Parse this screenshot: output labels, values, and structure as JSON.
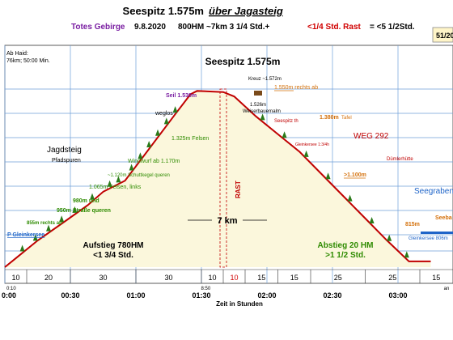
{
  "chart_data": {
    "type": "area",
    "title": "Seespitz 1.575m",
    "title_suffix": "über Jagasteig",
    "subtitle": {
      "region": "Totes Gebirge",
      "date": "9.8.2020",
      "stats": "800HM ~7km 3 1/4 Std.+",
      "rest": "<1/4 Std. Rast",
      "total": "= <5 1/2Std."
    },
    "page_badge": "51/20",
    "peak_label": "Seespitz 1.575m",
    "xlabel": "Zeit in Stunden",
    "x_ticks": [
      "0:00",
      "00:30",
      "01:00",
      "01:30",
      "02:00",
      "02:30",
      "03:00"
    ],
    "x_extra_labels": [
      "0:10",
      "8:50",
      "an"
    ],
    "x_range_minutes": [
      0,
      195
    ],
    "y_range_m": [
      780,
      1620
    ],
    "grid": true,
    "legend": "none",
    "profile_x_minutes": [
      0,
      5,
      15,
      28,
      38,
      45,
      55,
      65,
      78,
      85,
      88,
      100,
      105,
      115,
      125,
      135,
      145,
      155,
      165,
      175,
      185,
      195
    ],
    "profile_y_m": [
      780,
      820,
      900,
      990,
      1060,
      1120,
      1170,
      1300,
      1470,
      1560,
      1575,
      1570,
      1550,
      1460,
      1380,
      1300,
      1200,
      1100,
      1000,
      900,
      806,
      806
    ],
    "info_box": [
      "Ab Haid:",
      "76km; 50:00 Min."
    ],
    "annotations": {
      "jagdsteig": "Jagdsteig",
      "pfadspuren": "Pfadspuren",
      "seil": "Seil 1.530m",
      "weglos": "weglos",
      "felsen_1325": "1.325m Felsen",
      "windwurf": "Windwurf ab 1.170m",
      "schuttkegel": "~1.120m Schuttkegel queren",
      "felsen_1065": "1.065m Felsen, links",
      "wp_980": "980m und",
      "wp_950": "950m Straße queren",
      "wp_855": "855m rechts ab",
      "start": "P Gleinkersee",
      "kreuz": "Kreuz ~1.572m",
      "abzweig": "1.550m rechts ab",
      "weiser_alt": "1.526m",
      "weiser": "Weiserbauernalm",
      "seespitz_th": "Seespitz th",
      "tafel_alt": "1.380m",
      "tafel": "Tafel",
      "weg": "WEG 292",
      "gleinkersee_th": "Gleinkersee 1:3/4h",
      "duemler": "Dümlerhütte",
      "wp_1100": ">1.100m",
      "seegraben": "Seegraben",
      "wp_815": "815m",
      "seebad": "Seeba",
      "see_end": "Gleinkersee 806m",
      "rast": "RAST",
      "distance": "7 km",
      "ascent": "Aufstieg 780HM",
      "ascent_time": "<1 3/4 Std.",
      "descent": "Abstieg 20 HM",
      "descent_time": ">1 1/2 Std."
    },
    "segments": [
      {
        "label": "10",
        "from": 0,
        "to": 10
      },
      {
        "label": "20",
        "from": 10,
        "to": 30
      },
      {
        "label": "30",
        "from": 30,
        "to": 60
      },
      {
        "label": "30",
        "from": 60,
        "to": 90
      },
      {
        "label": "10",
        "from": 90,
        "to": 100
      },
      {
        "label": "10",
        "from": 100,
        "to": 110,
        "rest": true
      },
      {
        "label": "15",
        "from": 110,
        "to": 125
      },
      {
        "label": "15",
        "from": 125,
        "to": 140
      },
      {
        "label": "25",
        "from": 140,
        "to": 165
      },
      {
        "label": "25",
        "from": 165,
        "to": 190
      },
      {
        "label": "15",
        "from": 190,
        "to": 205
      }
    ]
  },
  "colors": {
    "title": "#000000",
    "region": "#7a1fa2",
    "rest": "#d00000",
    "profile": "#c00000",
    "fill": "#fbf7dc",
    "grid": "#6f9fd8",
    "waypoint_green": "#2e8b00",
    "waypoint_orange": "#d4700a",
    "waypoint_purple": "#7a1fa2",
    "lake": "#1e64c8",
    "rest_band": "#c00000"
  }
}
